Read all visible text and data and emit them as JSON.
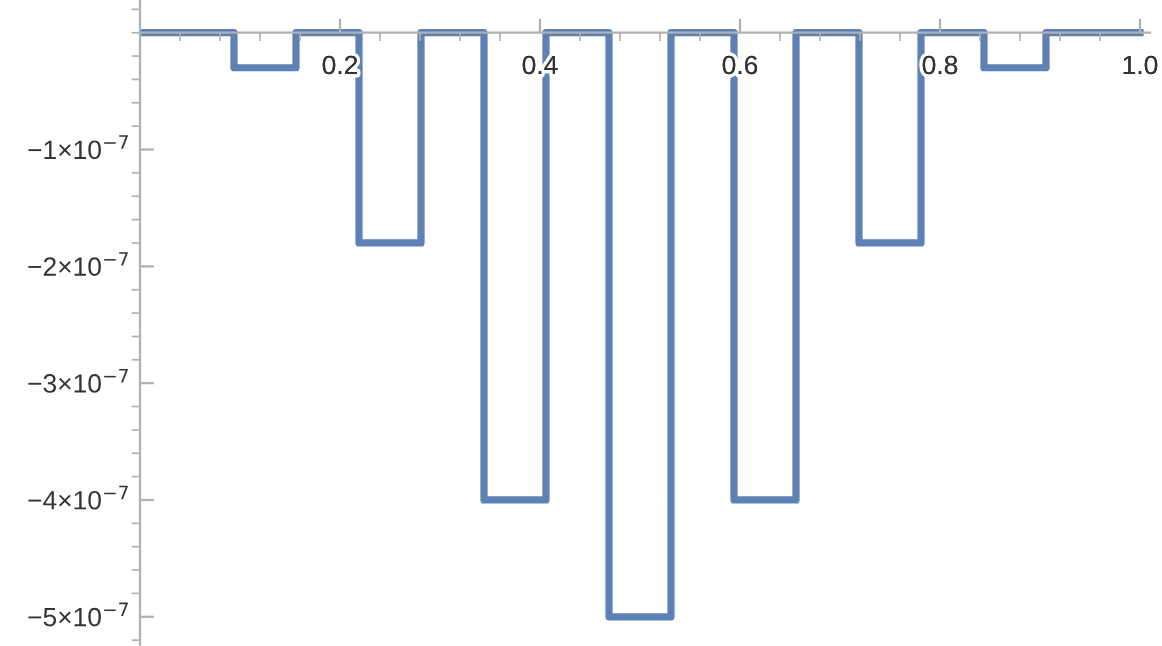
{
  "chart_data": {
    "type": "step",
    "x": [
      0,
      0.094,
      0.156,
      0.219,
      0.281,
      0.344,
      0.406,
      0.469,
      0.531,
      0.594,
      0.656,
      0.719,
      0.781,
      0.844,
      0.906,
      1.0
    ],
    "series": [
      {
        "color": "#5e81b5",
        "values": [
          0,
          -3e-08,
          0,
          -1.8e-07,
          0,
          -4e-07,
          0,
          -5e-07,
          0,
          -4e-07,
          0,
          -1.8e-07,
          0,
          -3e-08,
          0,
          0
        ]
      }
    ],
    "xlim": [
      0,
      1.01
    ],
    "ylim": [
      -5.25e-07,
      2.8e-08
    ],
    "xticks": [
      {
        "value": 0.2,
        "label": "0.2"
      },
      {
        "value": 0.4,
        "label": "0.4"
      },
      {
        "value": 0.6,
        "label": "0.6"
      },
      {
        "value": 0.8,
        "label": "0.8"
      },
      {
        "value": 1.0,
        "label": "1.0"
      }
    ],
    "yticks": [
      {
        "value": -1e-07,
        "label": "−1×10$^{−7}$"
      },
      {
        "value": -2e-07,
        "label": "−2×10$^{−7}$"
      },
      {
        "value": -3e-07,
        "label": "−3×10$^{−7}$"
      },
      {
        "value": -4e-07,
        "label": "−4×10$^{−7}$"
      },
      {
        "value": -5e-07,
        "label": "−5×10$^{−7}$"
      }
    ],
    "grid": false,
    "legend": false,
    "line_style": "solid",
    "marker": "none"
  }
}
